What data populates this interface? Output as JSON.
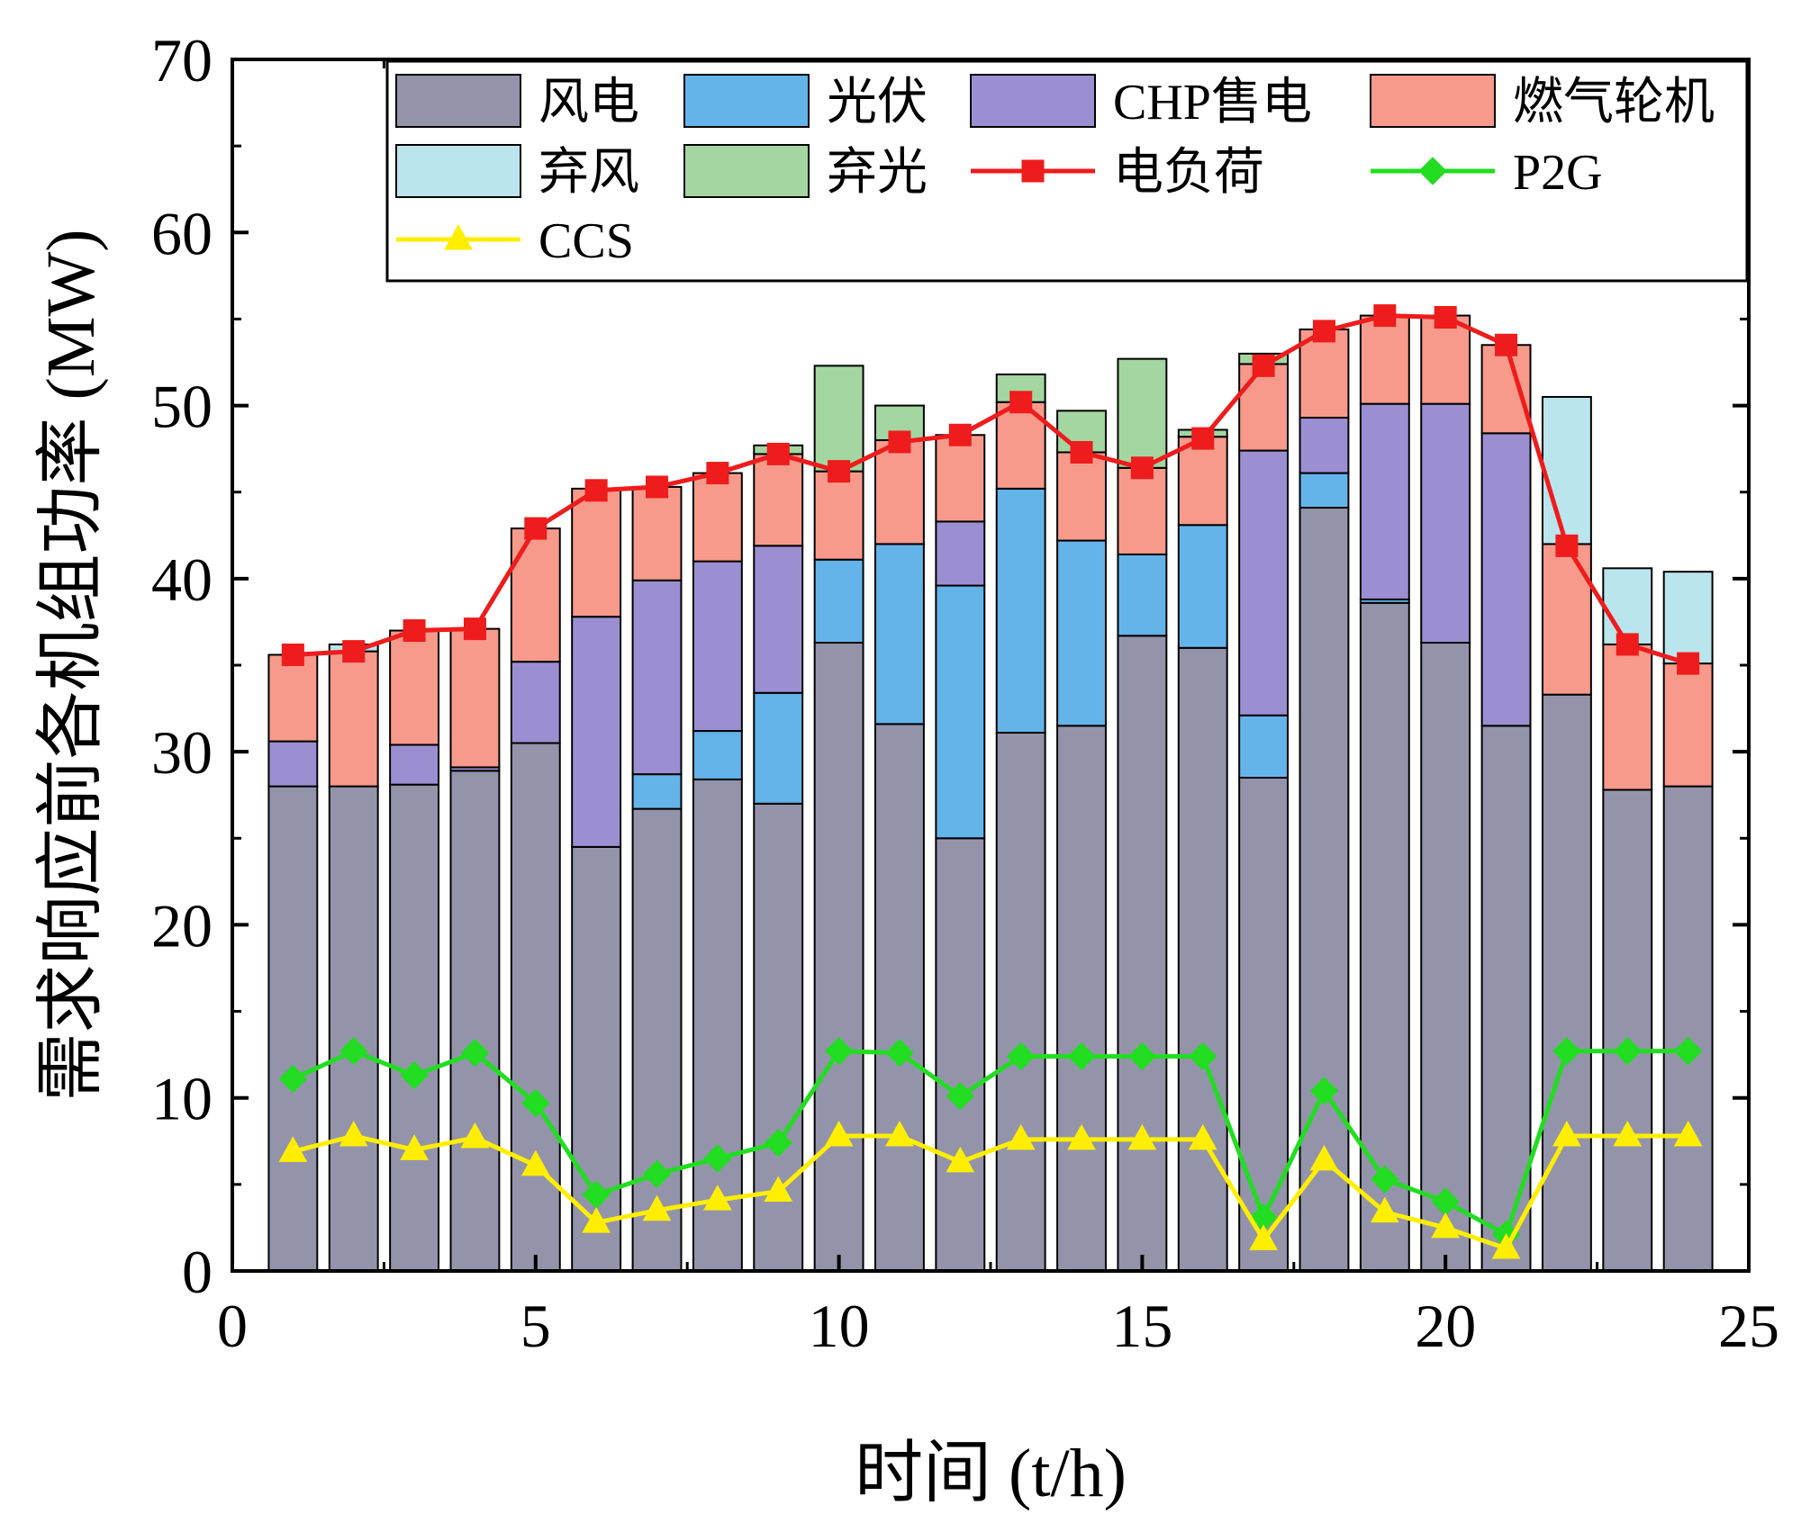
{
  "chart_data": {
    "type": "bar",
    "stacked": true,
    "title": "",
    "xlabel": "时间 (t/h)",
    "ylabel": "需求响应前各机组功率 (MW)",
    "xlim": [
      0,
      25
    ],
    "ylim": [
      0,
      70
    ],
    "xticks": [
      0,
      5,
      10,
      15,
      20,
      25
    ],
    "yticks": [
      0,
      10,
      20,
      30,
      40,
      50,
      60,
      70
    ],
    "legend_position": "top",
    "x": [
      1,
      2,
      3,
      4,
      5,
      6,
      7,
      8,
      9,
      10,
      11,
      12,
      13,
      14,
      15,
      16,
      17,
      18,
      19,
      20,
      21,
      22,
      23,
      24
    ],
    "bar_series": [
      {
        "name": "风电",
        "color": "#9394aa",
        "values": [
          28.0,
          28.0,
          28.1,
          28.9,
          30.5,
          24.5,
          26.7,
          28.4,
          27.0,
          36.3,
          31.6,
          25.0,
          31.1,
          31.5,
          36.7,
          36.0,
          28.5,
          44.1,
          38.6,
          36.3,
          31.5,
          33.3,
          27.8,
          28.0
        ]
      },
      {
        "name": "光伏",
        "color": "#64b4ea",
        "values": [
          0,
          0,
          0,
          0,
          0,
          0,
          2.0,
          2.8,
          6.4,
          4.8,
          10.4,
          14.6,
          14.1,
          10.7,
          4.7,
          7.1,
          3.6,
          2.0,
          0.2,
          0,
          0,
          0,
          0,
          0
        ]
      },
      {
        "name": "CHP售电",
        "color": "#9b8fd2",
        "values": [
          2.6,
          0,
          2.3,
          0.2,
          4.7,
          13.3,
          11.2,
          9.8,
          8.5,
          0,
          0,
          3.7,
          0,
          0,
          0,
          0,
          15.3,
          3.2,
          11.3,
          13.8,
          16.9,
          0,
          0,
          0
        ]
      },
      {
        "name": "燃气轮机",
        "color": "#f79a8b",
        "values": [
          5.0,
          7.8,
          6.6,
          8.0,
          7.7,
          7.4,
          5.4,
          5.1,
          5.3,
          5.1,
          6.0,
          5.0,
          5.0,
          5.1,
          5.0,
          5.1,
          5.0,
          5.1,
          5.1,
          5.1,
          5.1,
          8.7,
          8.4,
          7.1
        ]
      },
      {
        "name": "弃风",
        "color": "#bbe5ec",
        "values": [
          0,
          0.4,
          0,
          0,
          0,
          0,
          0,
          0,
          0,
          0,
          0,
          0,
          0,
          0,
          0,
          0,
          0,
          0,
          0,
          0,
          0,
          8.5,
          4.4,
          5.3
        ]
      },
      {
        "name": "弃光",
        "color": "#a3d6a0",
        "values": [
          0,
          0,
          0,
          0,
          0,
          0,
          0,
          0,
          0.5,
          6.1,
          2.0,
          0,
          1.6,
          2.4,
          6.3,
          0.4,
          0.6,
          0,
          0,
          0,
          0,
          0,
          0,
          0
        ]
      }
    ],
    "line_series": [
      {
        "name": "电负荷",
        "color": "#ee1c1c",
        "marker": "square",
        "values": [
          35.6,
          35.8,
          37.0,
          37.1,
          42.9,
          45.1,
          45.3,
          46.1,
          47.2,
          46.2,
          47.9,
          48.3,
          50.2,
          47.3,
          46.4,
          48.1,
          52.3,
          54.3,
          55.2,
          55.1,
          53.5,
          41.9,
          36.2,
          35.1
        ]
      },
      {
        "name": "P2G",
        "color": "#22dd22",
        "marker": "diamond",
        "values": [
          11.1,
          12.7,
          11.3,
          12.6,
          9.7,
          4.4,
          5.6,
          6.5,
          7.4,
          12.7,
          12.6,
          10.1,
          12.4,
          12.4,
          12.4,
          12.4,
          3.1,
          10.4,
          5.3,
          4.0,
          2.1,
          12.7,
          12.7,
          12.7
        ]
      },
      {
        "name": "CCS",
        "color": "#ffee00",
        "marker": "triangle",
        "values": [
          6.9,
          7.8,
          7.0,
          7.7,
          6.1,
          2.8,
          3.5,
          4.1,
          4.6,
          7.8,
          7.8,
          6.3,
          7.6,
          7.6,
          7.6,
          7.6,
          1.8,
          6.4,
          3.4,
          2.5,
          1.3,
          7.8,
          7.8,
          7.8
        ]
      }
    ],
    "legend": [
      "风电",
      "光伏",
      "CHP售电",
      "燃气轮机",
      "弃风",
      "弃光",
      "电负荷",
      "P2G",
      "CCS"
    ]
  }
}
